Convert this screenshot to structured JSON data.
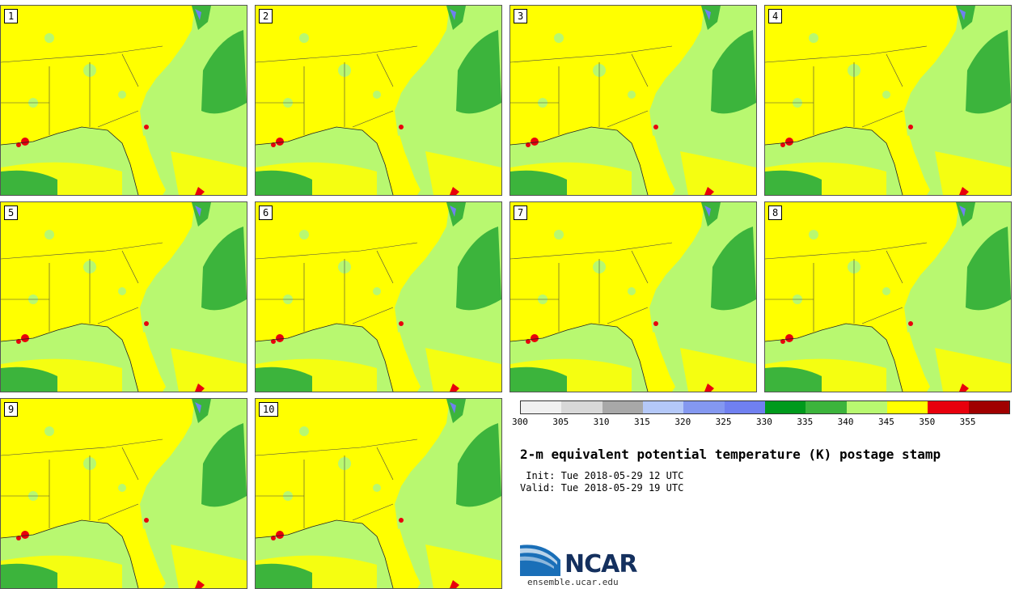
{
  "panels": [
    {
      "label": "1"
    },
    {
      "label": "2"
    },
    {
      "label": "3"
    },
    {
      "label": "4"
    },
    {
      "label": "5"
    },
    {
      "label": "6"
    },
    {
      "label": "7"
    },
    {
      "label": "8"
    },
    {
      "label": "9"
    },
    {
      "label": "10"
    }
  ],
  "colorbar": {
    "colors": [
      "#f0f0f0",
      "#d8d8d8",
      "#a8a8a8",
      "#b4c8f8",
      "#8498f0",
      "#7080f0",
      "#009a1c",
      "#3cb43c",
      "#b8f870",
      "#ffff00",
      "#e8000c",
      "#a00000"
    ],
    "ticks": [
      "300",
      "305",
      "310",
      "315",
      "320",
      "325",
      "330",
      "335",
      "340",
      "345",
      "350",
      "355"
    ]
  },
  "title": "2-m equivalent potential temperature (K) postage stamp",
  "init": " Init: Tue 2018-05-29 12 UTC",
  "valid": "Valid: Tue 2018-05-29 19 UTC",
  "logo": {
    "name": "NCAR",
    "url": "ensemble.ucar.edu"
  }
}
